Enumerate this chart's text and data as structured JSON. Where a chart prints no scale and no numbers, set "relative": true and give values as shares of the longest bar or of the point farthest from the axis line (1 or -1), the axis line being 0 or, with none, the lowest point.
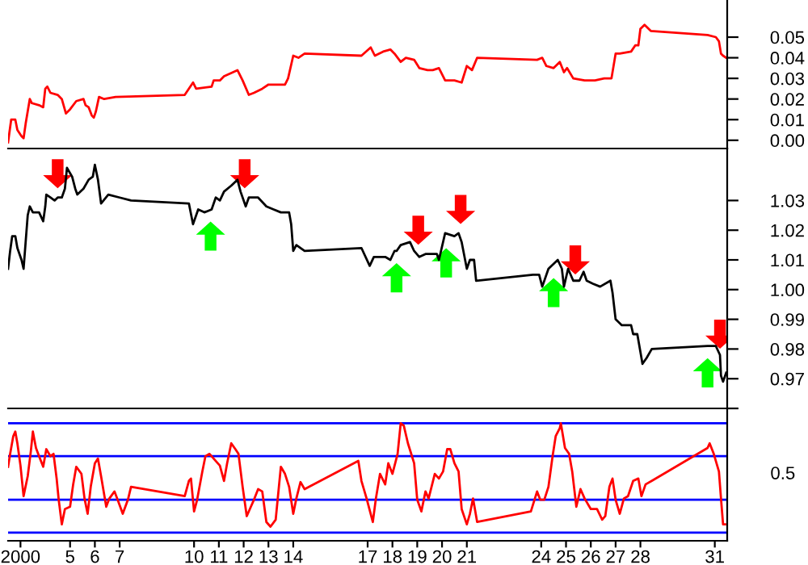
{
  "chart_data": [
    {
      "type": "line",
      "xlim": [
        "2000-01-03",
        "2000-02-01"
      ],
      "ylim": [
        -0.004,
        0.068
      ],
      "yticks": [
        {
          "value": 0,
          "label": "0.00"
        },
        0.01,
        0.02,
        0.03,
        0.04,
        0.05
      ],
      "tick_labels": "y",
      "grid": false,
      "series": [
        {
          "color": "#ff0000",
          "x": [
            "2000-01-03T00:00",
            "2000-01-03T03:00",
            "2000-01-03T07:00",
            "2000-01-03T09:00",
            "2000-01-03T13:00",
            "2000-01-03T15:00",
            "2000-01-03T17:00",
            "2000-01-03T21:00",
            "2000-01-03T23:00",
            "2000-01-04T06:00",
            "2000-01-04T10:00",
            "2000-01-04T12:00",
            "2000-01-04T14:00",
            "2000-01-04T17:00",
            "2000-01-05T00:00",
            "2000-01-05T04:00",
            "2000-01-05T08:00",
            "2000-01-05T12:00",
            "2000-01-05T18:00",
            "2000-01-06T01:00",
            "2000-01-06T03:00",
            "2000-01-06T06:00",
            "2000-01-06T09:00",
            "2000-01-06T11:00",
            "2000-01-06T13:00",
            "2000-01-06T16:00",
            "2000-01-06T21:00",
            "2000-01-07T08:00",
            "2000-01-10T03:00",
            "2000-01-10T11:00",
            "2000-01-10T14:00",
            "2000-01-11T05:00",
            "2000-01-11T07:00",
            "2000-01-11T13:00",
            "2000-01-11T17:00",
            "2000-01-12T06:00",
            "2000-01-12T11:00",
            "2000-01-12T17:00",
            "2000-01-12T22:00",
            "2000-01-13T06:00",
            "2000-01-13T12:00",
            "2000-01-14T04:00",
            "2000-01-14T07:00",
            "2000-01-14T12:00",
            "2000-01-14T17:00",
            "2000-01-14T23:00",
            "2000-01-17T06:00",
            "2000-01-17T15:00",
            "2000-01-17T19:00",
            "2000-01-18T03:00",
            "2000-01-18T10:00",
            "2000-01-18T14:00",
            "2000-01-18T20:00",
            "2000-01-19T01:00",
            "2000-01-19T09:00",
            "2000-01-19T14:00",
            "2000-01-19T22:00",
            "2000-01-20T03:00",
            "2000-01-20T09:00",
            "2000-01-20T15:00",
            "2000-01-21T00:00",
            "2000-01-21T07:00",
            "2000-01-21T12:00",
            "2000-01-21T17:00",
            "2000-01-21T22:00",
            "2000-01-24T08:00",
            "2000-01-24T13:00",
            "2000-01-24T17:00",
            "2000-01-25T00:00",
            "2000-01-25T06:00",
            "2000-01-25T10:00",
            "2000-01-25T13:00",
            "2000-01-25T19:00",
            "2000-01-26T06:00",
            "2000-01-26T16:00",
            "2000-01-27T01:00",
            "2000-01-27T05:00",
            "2000-01-27T08:00",
            "2000-01-27T12:00",
            "2000-01-27T16:00",
            "2000-01-28T03:00",
            "2000-01-28T07:00",
            "2000-01-28T10:00",
            "2000-01-28T12:00",
            "2000-01-28T16:00",
            "2000-01-28T22:00",
            "2000-01-31T05:00",
            "2000-01-31T13:00",
            "2000-01-31T16:00",
            "2000-01-31T18:00",
            "2000-01-31T20:00",
            "2000-01-31T23:00"
          ],
          "values": [
            -0.001,
            0.01,
            0.01,
            0.005,
            0.002,
            0.001,
            0.008,
            0.02,
            0.018,
            0.017,
            0.016,
            0.025,
            0.026,
            0.023,
            0.022,
            0.02,
            0.013,
            0.015,
            0.019,
            0.02,
            0.017,
            0.016,
            0.012,
            0.011,
            0.014,
            0.021,
            0.02,
            0.021,
            0.022,
            0.028,
            0.025,
            0.026,
            0.029,
            0.029,
            0.031,
            0.034,
            0.029,
            0.022,
            0.023,
            0.025,
            0.027,
            0.027,
            0.03,
            0.041,
            0.04,
            0.042,
            0.041,
            0.045,
            0.041,
            0.043,
            0.044,
            0.042,
            0.038,
            0.04,
            0.039,
            0.035,
            0.034,
            0.034,
            0.035,
            0.029,
            0.029,
            0.028,
            0.036,
            0.034,
            0.04,
            0.039,
            0.04,
            0.036,
            0.035,
            0.038,
            0.033,
            0.035,
            0.03,
            0.029,
            0.029,
            0.03,
            0.03,
            0.03,
            0.042,
            0.042,
            0.043,
            0.046,
            0.046,
            0.054,
            0.056,
            0.053,
            0.051,
            0.05,
            0.048,
            0.042,
            0.041,
            0.04
          ]
        }
      ]
    },
    {
      "type": "line",
      "xlim": [
        "2000-01-03",
        "2000-02-01"
      ],
      "ylim": [
        0.96,
        1.0475
      ],
      "yticks": [
        {
          "value": 0.96,
          "label": null
        },
        0.97,
        0.98,
        0.99,
        {
          "value": 1.0,
          "label": "1.00"
        },
        1.01,
        1.02,
        1.03
      ],
      "tick_labels": "y",
      "grid": false,
      "series": [
        {
          "color": "#000000",
          "x": [
            "2000-01-03T00:00",
            "2000-01-03T02:00",
            "2000-01-03T04:00",
            "2000-01-03T07:00",
            "2000-01-03T09:00",
            "2000-01-03T13:00",
            "2000-01-03T15:00",
            "2000-01-03T17:00",
            "2000-01-03T19:00",
            "2000-01-03T21:00",
            "2000-01-04T00:00",
            "2000-01-04T06:00",
            "2000-01-04T10:00",
            "2000-01-04T12:00",
            "2000-01-04T13:00",
            "2000-01-04T17:00",
            "2000-01-04T21:00",
            "2000-01-05T00:00",
            "2000-01-05T04:00",
            "2000-01-05T07:00",
            "2000-01-05T09:00",
            "2000-01-05T14:00",
            "2000-01-05T17:00",
            "2000-01-05T19:00",
            "2000-01-06T01:00",
            "2000-01-06T06:00",
            "2000-01-06T10:00",
            "2000-01-06T12:00",
            "2000-01-06T15:00",
            "2000-01-06T18:00",
            "2000-01-07T01:00",
            "2000-01-07T12:00",
            "2000-01-07T23:00",
            "2000-01-10T07:00",
            "2000-01-10T11:00",
            "2000-01-10T16:00",
            "2000-01-10T22:00",
            "2000-01-11T05:00",
            "2000-01-11T09:00",
            "2000-01-11T13:00",
            "2000-01-11T17:00",
            "2000-01-12T00:00",
            "2000-01-12T06:00",
            "2000-01-12T09:00",
            "2000-01-12T14:00",
            "2000-01-12T17:00",
            "2000-01-13T02:00",
            "2000-01-13T10:00",
            "2000-01-13T17:00",
            "2000-01-14T00:00",
            "2000-01-14T08:00",
            "2000-01-14T10:00",
            "2000-01-14T12:00",
            "2000-01-14T15:00",
            "2000-01-14T23:00",
            "2000-01-17T06:00",
            "2000-01-17T14:00",
            "2000-01-17T18:00",
            "2000-01-18T05:00",
            "2000-01-18T10:00",
            "2000-01-18T14:00",
            "2000-01-18T16:00",
            "2000-01-18T20:00",
            "2000-01-19T05:00",
            "2000-01-19T09:00",
            "2000-01-19T14:00",
            "2000-01-19T20:00",
            "2000-01-20T02:00",
            "2000-01-20T07:00",
            "2000-01-20T09:00",
            "2000-01-20T15:00",
            "2000-01-21T00:00",
            "2000-01-21T04:00",
            "2000-01-21T07:00",
            "2000-01-21T12:00",
            "2000-01-21T15:00",
            "2000-01-21T19:00",
            "2000-01-21T21:00",
            "2000-01-24T04:00",
            "2000-01-24T10:00",
            "2000-01-24T13:00",
            "2000-01-24T19:00",
            "2000-01-25T04:00",
            "2000-01-25T08:00",
            "2000-01-25T10:00",
            "2000-01-25T14:00",
            "2000-01-25T19:00",
            "2000-01-26T01:00",
            "2000-01-26T05:00",
            "2000-01-26T08:00",
            "2000-01-26T14:00",
            "2000-01-26T21:00",
            "2000-01-27T07:00",
            "2000-01-27T09:00",
            "2000-01-27T12:00",
            "2000-01-27T18:00",
            "2000-01-28T03:00",
            "2000-01-28T05:00",
            "2000-01-28T09:00",
            "2000-01-28T12:00",
            "2000-01-28T14:00",
            "2000-01-28T18:00",
            "2000-01-28T23:00",
            "2000-01-31T05:00",
            "2000-01-31T13:00",
            "2000-01-31T17:00",
            "2000-01-31T18:00",
            "2000-01-31T20:00",
            "2000-01-31T23:00"
          ],
          "values": [
            1.007,
            1.013,
            1.018,
            1.018,
            1.014,
            1.01,
            1.007,
            1.016,
            1.025,
            1.028,
            1.026,
            1.026,
            1.023,
            1.028,
            1.032,
            1.031,
            1.03,
            1.031,
            1.031,
            1.034,
            1.041,
            1.038,
            1.034,
            1.032,
            1.034,
            1.037,
            1.038,
            1.042,
            1.037,
            1.029,
            1.032,
            1.031,
            1.03,
            1.029,
            1.022,
            1.027,
            1.026,
            1.027,
            1.031,
            1.03,
            1.033,
            1.035,
            1.037,
            1.033,
            1.028,
            1.031,
            1.031,
            1.028,
            1.027,
            1.026,
            1.026,
            1.022,
            1.013,
            1.015,
            1.013,
            1.014,
            1.008,
            1.011,
            1.011,
            1.01,
            1.013,
            1.013,
            1.015,
            1.016,
            1.013,
            1.011,
            1.012,
            1.012,
            1.012,
            1.01,
            1.019,
            1.018,
            1.019,
            1.016,
            1.007,
            1.01,
            1.01,
            1.003,
            1.005,
            1.005,
            1.001,
            1.007,
            1.01,
            1.007,
            1.001,
            1.007,
            1.003,
            1.003,
            1.006,
            1.003,
            1.002,
            1.001,
            1.003,
            0.999,
            0.99,
            0.988,
            0.988,
            0.985,
            0.985,
            0.979,
            0.975,
            0.977,
            0.98,
            0.981,
            0.981,
            0.978,
            0.971,
            0.969,
            0.972
          ]
        },
        {
          "type": "scatter",
          "color": "#ff0000",
          "x": [
            "2000-01-05T00:00",
            "2000-01-12T13:00",
            "2000-01-19T13:00",
            "2000-01-21T06:00",
            "2000-01-25T21:00",
            "2000-01-31T17:00"
          ],
          "values": [
            1.039,
            1.039,
            1.02,
            1.027,
            1.01,
            0.985
          ]
        },
        {
          "type": "scatter",
          "color": "#00ff00",
          "x": [
            "2000-01-11T04:00",
            "2000-01-18T16:00",
            "2000-01-20T16:00",
            "2000-01-25T00:00",
            "2000-01-31T05:00"
          ],
          "values": [
            1.018,
            1.004,
            1.009,
            0.999,
            0.972
          ]
        }
      ]
    },
    {
      "type": "line",
      "relative": true,
      "xlim": [
        "2000-01-03",
        "2000-02-01"
      ],
      "xticks": [
        {
          "value": "2000-01-03T12:00",
          "label": "2000"
        },
        {
          "value": "2000-01-05T12:00",
          "label": "5"
        },
        {
          "value": "2000-01-06T12:00",
          "label": "6"
        },
        {
          "value": "2000-01-07T12:00",
          "label": "7"
        },
        {
          "value": "2000-01-10T12:00",
          "label": "10"
        },
        {
          "value": "2000-01-11T12:00",
          "label": "11"
        },
        {
          "value": "2000-01-12T12:00",
          "label": "12"
        },
        {
          "value": "2000-01-13T12:00",
          "label": "13"
        },
        {
          "value": "2000-01-14T12:00",
          "label": "14"
        },
        {
          "value": "2000-01-17T12:00",
          "label": "17"
        },
        {
          "value": "2000-01-18T12:00",
          "label": "18"
        },
        {
          "value": "2000-01-19T12:00",
          "label": "19"
        },
        {
          "value": "2000-01-20T12:00",
          "label": "20"
        },
        {
          "value": "2000-01-21T12:00",
          "label": "21"
        },
        {
          "value": "2000-01-24T12:00",
          "label": "24"
        },
        {
          "value": "2000-01-25T12:00",
          "label": "25"
        },
        {
          "value": "2000-01-26T12:00",
          "label": "26"
        },
        {
          "value": "2000-01-27T12:00",
          "label": "27"
        },
        {
          "value": "2000-01-28T12:00",
          "label": "28"
        },
        {
          "value": "2000-01-31T12:00",
          "label": "31"
        }
      ],
      "grid": false,
      "annotations": [
        "0.5"
      ],
      "ref_lines": [
        {
          "axis": "y",
          "value": 1,
          "color": "#0000ff"
        },
        {
          "axis": "y",
          "value": 0.72,
          "color": "#0000ff"
        },
        {
          "axis": "y",
          "value": 0.35,
          "color": "#0000ff"
        },
        {
          "axis": "y",
          "value": 0.07,
          "color": "#0000ff"
        }
      ],
      "series": [
        {
          "color": "#ff0000",
          "x": [
            "2000-01-03T00:00",
            "2000-01-03T02:00",
            "2000-01-03T05:00",
            "2000-01-03T07:00",
            "2000-01-03T09:00",
            "2000-01-03T12:00",
            "2000-01-03T15:00",
            "2000-01-03T19:00",
            "2000-01-03T22:00",
            "2000-01-04T00:00",
            "2000-01-04T03:00",
            "2000-01-04T06:00",
            "2000-01-04T10:00",
            "2000-01-04T13:00",
            "2000-01-04T17:00",
            "2000-01-04T20:00",
            "2000-01-04T23:00",
            "2000-01-05T01:00",
            "2000-01-05T04:00",
            "2000-01-05T07:00",
            "2000-01-05T12:00",
            "2000-01-05T15:00",
            "2000-01-05T18:00",
            "2000-01-05T23:00",
            "2000-01-06T02:00",
            "2000-01-06T05:00",
            "2000-01-06T08:00",
            "2000-01-06T12:00",
            "2000-01-06T15:00",
            "2000-01-06T18:00",
            "2000-01-06T23:00",
            "2000-01-07T02:00",
            "2000-01-07T07:00",
            "2000-01-07T10:00",
            "2000-01-07T15:00",
            "2000-01-07T20:00",
            "2000-01-07T23:00",
            "2000-01-10T03:00",
            "2000-01-10T07:00",
            "2000-01-10T09:00",
            "2000-01-10T12:00",
            "2000-01-10T15:00",
            "2000-01-10T20:00",
            "2000-01-10T23:00",
            "2000-01-11T03:00",
            "2000-01-11T09:00",
            "2000-01-11T13:00",
            "2000-01-11T17:00",
            "2000-01-11T20:00",
            "2000-01-12T00:00",
            "2000-01-12T04:00",
            "2000-01-12T07:00",
            "2000-01-12T11:00",
            "2000-01-12T15:00",
            "2000-01-12T19:00",
            "2000-01-12T22:00",
            "2000-01-13T02:00",
            "2000-01-13T06:00",
            "2000-01-13T10:00",
            "2000-01-13T14:00",
            "2000-01-13T19:00",
            "2000-01-14T00:00",
            "2000-01-14T04:00",
            "2000-01-14T08:00",
            "2000-01-14T12:00",
            "2000-01-14T15:00",
            "2000-01-14T19:00",
            "2000-01-14T23:00",
            "2000-01-17T03:00",
            "2000-01-17T06:00",
            "2000-01-17T11:00",
            "2000-01-17T17:00",
            "2000-01-17T20:00",
            "2000-01-18T00:00",
            "2000-01-18T05:00",
            "2000-01-18T08:00",
            "2000-01-18T12:00",
            "2000-01-18T17:00",
            "2000-01-18T20:00",
            "2000-01-18T23:00",
            "2000-01-19T03:00",
            "2000-01-19T09:00",
            "2000-01-19T12:00",
            "2000-01-19T16:00",
            "2000-01-19T20:00",
            "2000-01-19T23:00",
            "2000-01-20T05:00",
            "2000-01-20T09:00",
            "2000-01-20T13:00",
            "2000-01-20T17:00",
            "2000-01-20T20:00",
            "2000-01-21T00:00",
            "2000-01-21T04:00",
            "2000-01-21T07:00",
            "2000-01-21T12:00",
            "2000-01-21T15:00",
            "2000-01-21T18:00",
            "2000-01-21T22:00",
            "2000-01-24T02:00",
            "2000-01-24T08:00",
            "2000-01-24T11:00",
            "2000-01-24T15:00",
            "2000-01-24T19:00",
            "2000-01-24T23:00",
            "2000-01-25T02:00",
            "2000-01-25T06:00",
            "2000-01-25T07:00",
            "2000-01-25T11:00",
            "2000-01-25T15:00",
            "2000-01-25T18:00",
            "2000-01-25T22:00",
            "2000-01-26T02:00",
            "2000-01-26T06:00",
            "2000-01-26T12:00",
            "2000-01-26T18:00",
            "2000-01-26T23:00",
            "2000-01-27T02:00",
            "2000-01-27T06:00",
            "2000-01-27T09:00",
            "2000-01-27T12:00",
            "2000-01-27T16:00",
            "2000-01-27T20:00",
            "2000-01-28T00:00",
            "2000-01-28T05:00",
            "2000-01-28T10:00",
            "2000-01-28T13:00",
            "2000-01-28T17:00",
            "2000-01-28T23:00",
            "2000-01-31T05:00",
            "2000-01-31T07:00",
            "2000-01-31T11:00",
            "2000-01-31T16:00",
            "2000-01-31T18:00",
            "2000-01-31T20:00",
            "2000-01-31T22:00"
          ],
          "values": [
            0.63,
            0.74,
            0.89,
            0.93,
            0.83,
            0.64,
            0.38,
            0.55,
            0.76,
            0.93,
            0.79,
            0.72,
            0.63,
            0.78,
            0.72,
            0.74,
            0.53,
            0.35,
            0.14,
            0.27,
            0.29,
            0.48,
            0.63,
            0.57,
            0.36,
            0.23,
            0.46,
            0.66,
            0.7,
            0.55,
            0.29,
            0.36,
            0.42,
            0.35,
            0.23,
            0.35,
            0.46,
            0.38,
            0.51,
            0.53,
            0.25,
            0.35,
            0.59,
            0.72,
            0.74,
            0.68,
            0.64,
            0.51,
            0.66,
            0.83,
            0.78,
            0.74,
            0.46,
            0.21,
            0.29,
            0.35,
            0.44,
            0.42,
            0.16,
            0.12,
            0.18,
            0.63,
            0.57,
            0.46,
            0.23,
            0.36,
            0.5,
            0.44,
            0.68,
            0.51,
            0.36,
            0.16,
            0.36,
            0.57,
            0.48,
            0.66,
            0.57,
            0.74,
            1,
            0.98,
            0.83,
            0.66,
            0.35,
            0.25,
            0.42,
            0.36,
            0.57,
            0.53,
            0.59,
            0.78,
            0.78,
            0.66,
            0.59,
            0.27,
            0.14,
            0.23,
            0.36,
            0.16,
            0.25,
            0.42,
            0.35,
            0.35,
            0.46,
            0.72,
            0.89,
            0.96,
            1,
            0.79,
            0.74,
            0.59,
            0.29,
            0.44,
            0.36,
            0.27,
            0.27,
            0.18,
            0.21,
            0.46,
            0.53,
            0.35,
            0.23,
            0.36,
            0.38,
            0.51,
            0.53,
            0.38,
            0.48,
            0.51,
            0.79,
            0.83,
            0.74,
            0.59,
            0.36,
            0.14,
            0.14
          ]
        }
      ]
    }
  ]
}
